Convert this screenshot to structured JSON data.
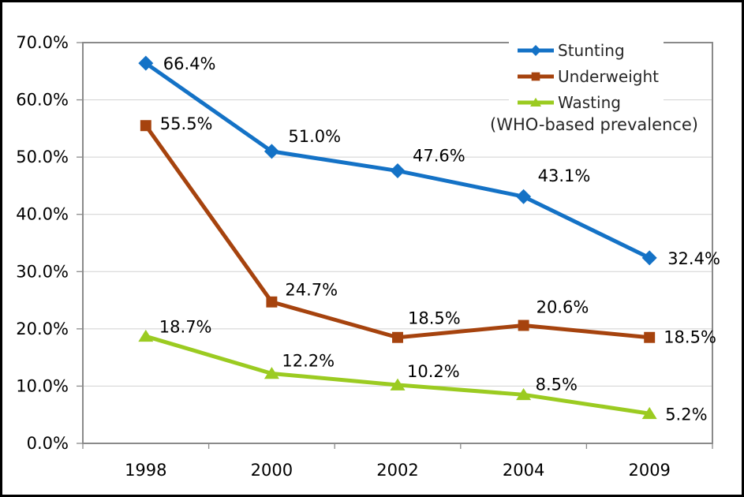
{
  "chart_data": {
    "type": "line",
    "title": "",
    "categories": [
      "1998",
      "2000",
      "2002",
      "2004",
      "2009"
    ],
    "series": [
      {
        "name": "Stunting",
        "color": "#1472C6",
        "marker": "diamond",
        "values": [
          66.4,
          51.0,
          47.6,
          43.1,
          32.4
        ],
        "data_labels": [
          "66.4%",
          "51.0%",
          "47.6%",
          "43.1%",
          "32.4%"
        ],
        "label_offsets": [
          [
            22,
            1
          ],
          [
            21,
            -19
          ],
          [
            19,
            -19
          ],
          [
            18,
            -26
          ],
          [
            23,
            1
          ]
        ]
      },
      {
        "name": "Underweight",
        "color": "#A6430E",
        "marker": "square",
        "values": [
          55.5,
          24.7,
          18.5,
          20.6,
          18.5
        ],
        "data_labels": [
          "55.5%",
          "24.7%",
          "18.5%",
          "20.6%",
          "18.5%"
        ],
        "label_offsets": [
          [
            18,
            -2
          ],
          [
            17,
            -15
          ],
          [
            13,
            -24
          ],
          [
            16,
            -23
          ],
          [
            18,
            0
          ]
        ]
      },
      {
        "name": "Wasting",
        "color": "#9BCB21",
        "marker": "triangle",
        "values": [
          18.7,
          12.2,
          10.2,
          8.5,
          5.2
        ],
        "data_labels": [
          "18.7%",
          "12.2%",
          "10.2%",
          "8.5%",
          "5.2%"
        ],
        "label_offsets": [
          [
            17,
            -12
          ],
          [
            13,
            -16
          ],
          [
            12,
            -17
          ],
          [
            15,
            -13
          ],
          [
            20,
            1
          ]
        ]
      }
    ],
    "ylim": [
      0,
      70
    ],
    "y_tick_values": [
      0,
      10,
      20,
      30,
      40,
      50,
      60,
      70
    ],
    "y_tick_labels": [
      "0.0%",
      "10.0%",
      "20.0%",
      "30.0%",
      "40.0%",
      "50.0%",
      "60.0%",
      "70.0%"
    ],
    "xlabel": "",
    "ylabel": "",
    "grid": true,
    "legend_position": "top-right",
    "legend_note": "(WHO-based prevalence)"
  },
  "colors": {
    "gridline": "#D1D1D1",
    "plot_border": "#8A8A8A",
    "tick": "#8A8A8A",
    "axis_text": "#000000",
    "data_label_text": "#000000",
    "legend_text": "#262626",
    "background": "#FFFFFF"
  }
}
